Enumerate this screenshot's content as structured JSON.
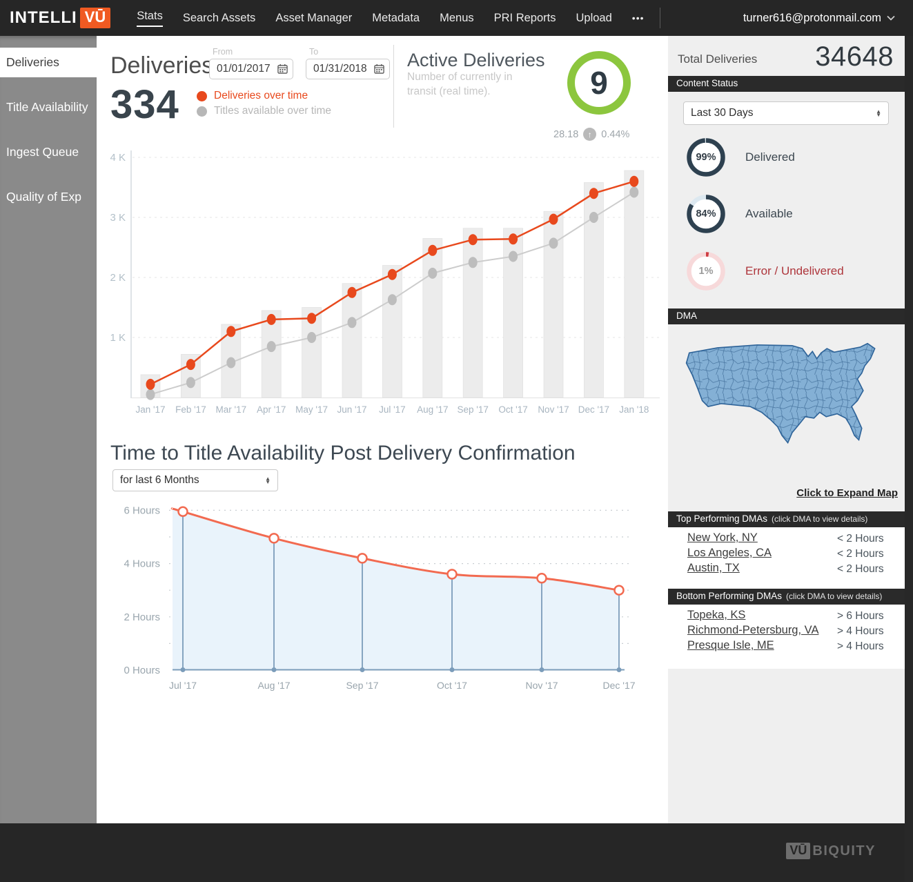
{
  "nav": {
    "logo_intelli": "INTELLI",
    "logo_vu": "VŪ",
    "items": [
      {
        "label": "Stats",
        "active": true
      },
      {
        "label": "Search Assets"
      },
      {
        "label": "Asset Manager"
      },
      {
        "label": "Metadata"
      },
      {
        "label": "Menus"
      },
      {
        "label": "PRI Reports"
      },
      {
        "label": "Upload"
      }
    ],
    "more_label": "•••",
    "account_email": "turner616@protonmail.com"
  },
  "sidebar": {
    "items": [
      {
        "label": "Deliveries",
        "active": true
      },
      {
        "label": "Title Availability"
      },
      {
        "label": "Ingest Queue"
      },
      {
        "label": "Quality of Exp"
      }
    ]
  },
  "deliveries_header": {
    "title": "Deliveries",
    "count": "334",
    "from_label": "From",
    "from_value": "01/01/2017",
    "to_label": "To",
    "to_value": "01/31/2018",
    "legend": [
      {
        "label": "Deliveries over time",
        "color": "#e8491d"
      },
      {
        "label": "Titles available over time",
        "color": "#b7b7b7"
      }
    ]
  },
  "active_deliveries": {
    "title": "Active Deliveries",
    "subtitle": "Number of currently in transit (real time).",
    "value": "9",
    "stat_left": "28.18",
    "stat_arrow": "↑",
    "stat_right": "0.44%"
  },
  "right_panel": {
    "total_label": "Total Deliveries",
    "total_value": "34648",
    "content_status": {
      "header": "Content Status",
      "range_select": "Last 30 Days",
      "rings": [
        {
          "pct": 99,
          "pct_label": "99%",
          "label": "Delivered",
          "arc_color": "#2e4150",
          "track_color": "#dfe9ee"
        },
        {
          "pct": 84,
          "pct_label": "84%",
          "label": "Available",
          "arc_color": "#2e4150",
          "track_color": "#dce8f0"
        },
        {
          "pct": 1,
          "pct_label": "1%",
          "label": "Error / Undelivered",
          "arc_color": "#cf3d43",
          "track_color": "#f7d9da",
          "error": true
        }
      ]
    },
    "dma": {
      "header": "DMA",
      "expand_link": "Click to Expand Map",
      "map_fill": "#84b0d5",
      "map_border": "#2f6499"
    },
    "top_dmas": {
      "header": "Top Performing DMAs",
      "header_note": "(click DMA to view details)",
      "rows": [
        {
          "name": "New York, NY",
          "value": "< 2 Hours"
        },
        {
          "name": "Los Angeles, CA",
          "value": "< 2 Hours"
        },
        {
          "name": "Austin, TX",
          "value": "< 2 Hours"
        }
      ]
    },
    "bottom_dmas": {
      "header": "Bottom Performing DMAs",
      "header_note": "(click DMA to view details)",
      "rows": [
        {
          "name": "Topeka, KS",
          "value": "> 6 Hours"
        },
        {
          "name": "Richmond-Petersburg, VA",
          "value": "> 4 Hours"
        },
        {
          "name": "Presque Isle, ME",
          "value": "> 4 Hours"
        }
      ]
    }
  },
  "availability_section": {
    "title": "Time to Title Availability Post Delivery Confirmation",
    "range_select": "for last 6 Months"
  },
  "footer": {
    "logo_vu": "VŪ",
    "logo_rest": "BIQUITY"
  },
  "colors": {
    "accent_orange": "#f05a22",
    "series_red": "#e8491d",
    "series_gray": "#bdbdbd",
    "bar_fill": "#ececec",
    "green": "#8cc63e",
    "navy_ring": "#2e4150",
    "error_red": "#cf3d43",
    "map_blue": "#84b0d5",
    "panel_bg": "#efefef",
    "dark_bar": "#2a2a2a"
  },
  "chart_data": [
    {
      "type": "bar",
      "title": "Deliveries over time vs Titles available over time (Jan '17 – Jan '18)",
      "categories": [
        "Jan '17",
        "Feb '17",
        "Mar '17",
        "Apr '17",
        "May '17",
        "Jun '17",
        "Jul '17",
        "Aug '17",
        "Sep '17",
        "Oct '17",
        "Nov '17",
        "Dec '17",
        "Jan '18"
      ],
      "series": [
        {
          "name": "Deliveries over time",
          "type": "line",
          "color": "#e8491d",
          "values": [
            220,
            550,
            1100,
            1300,
            1320,
            1750,
            2050,
            2450,
            2630,
            2640,
            2970,
            3400,
            3600
          ]
        },
        {
          "name": "Titles available over time",
          "type": "line",
          "color": "#bdbdbd",
          "values": [
            50,
            250,
            580,
            850,
            1000,
            1250,
            1630,
            2070,
            2250,
            2350,
            2570,
            3000,
            3420
          ]
        },
        {
          "name": "Monthly total (bars)",
          "type": "bar",
          "color": "#ececec",
          "values": [
            380,
            720,
            1220,
            1450,
            1500,
            1900,
            2200,
            2650,
            2820,
            2820,
            3100,
            3580,
            3780
          ]
        }
      ],
      "ylabels": [
        "1 K",
        "2 K",
        "3 K",
        "4 K"
      ],
      "ylim": [
        0,
        4300
      ],
      "grid": "dashed horizontal",
      "legend_position": "top-left header"
    },
    {
      "type": "area",
      "title": "Time to Title Availability Post Delivery Confirmation",
      "categories": [
        "Jul '17",
        "Aug '17",
        "Sep '17",
        "Oct '17",
        "Nov '17",
        "Dec '17"
      ],
      "values": [
        5.95,
        4.95,
        4.2,
        3.6,
        3.45,
        3.0
      ],
      "unit": "Hours",
      "ylabels": [
        "0 Hours",
        "2 Hours",
        "4 Hours",
        "6 Hours"
      ],
      "ylim": [
        0,
        6.5
      ],
      "line_color": "#f26a50",
      "area_color": "#e9f3fb",
      "stem_color": "#7b9cba",
      "grid": "dotted horizontal each hour"
    }
  ]
}
